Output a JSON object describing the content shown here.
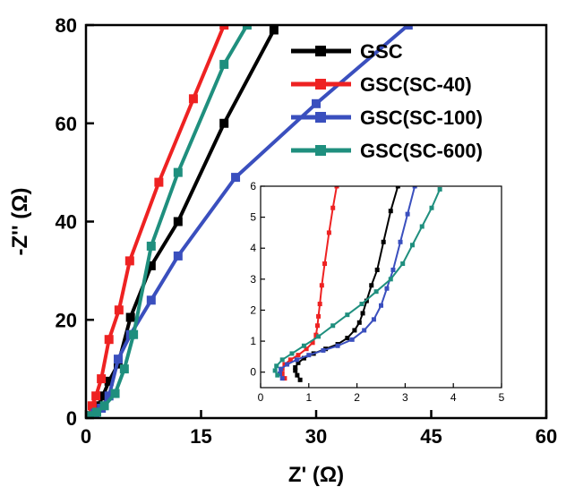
{
  "chart_data": [
    {
      "type": "line",
      "xlabel": "Z' (Ω)",
      "ylabel": "-Z'' (Ω)",
      "xlim": [
        0,
        60
      ],
      "ylim": [
        0,
        80
      ],
      "xticks": [
        0,
        15,
        30,
        45,
        60
      ],
      "yticks": [
        0,
        20,
        40,
        60,
        80
      ],
      "legend": "top-right",
      "series": [
        {
          "name": "GSC",
          "color": "#000000",
          "x": [
            0.6,
            1.0,
            1.6,
            2.2,
            3.0,
            4.2,
            5.8,
            8.5,
            12.0,
            18.0,
            24.5
          ],
          "y": [
            0.5,
            1.2,
            2.5,
            4.5,
            7.5,
            11,
            20.5,
            31,
            40,
            60,
            79
          ]
        },
        {
          "name": "GSC(SC-40)",
          "color": "#ee2222",
          "x": [
            0.4,
            0.8,
            1.3,
            2.0,
            3.0,
            4.3,
            5.7,
            9.5,
            14.0,
            18.0
          ],
          "y": [
            0.5,
            2.5,
            4.5,
            8,
            16,
            22,
            32,
            48,
            65,
            80
          ]
        },
        {
          "name": "GSC(SC-100)",
          "color": "#3a4fbe",
          "x": [
            0.6,
            1.2,
            2.0,
            3.0,
            4.2,
            5.8,
            8.5,
            12.0,
            19.5,
            30.0,
            42.0
          ],
          "y": [
            0.4,
            1.0,
            2.0,
            4.5,
            12,
            17,
            24,
            33,
            49,
            64,
            80
          ]
        },
        {
          "name": "GSC(SC-600)",
          "color": "#1f8f7e",
          "x": [
            0.6,
            1.4,
            2.4,
            3.8,
            5.0,
            6.2,
            8.5,
            12.0,
            18.0,
            21.0
          ],
          "y": [
            0.5,
            1.2,
            2.5,
            5,
            10,
            17,
            35,
            50,
            72,
            80
          ]
        }
      ]
    },
    {
      "type": "line",
      "xlim": [
        0,
        5
      ],
      "ylim": [
        -0.5,
        6
      ],
      "xticks": [
        0,
        1,
        2,
        3,
        4,
        5
      ],
      "yticks": [
        0,
        1,
        2,
        3,
        4,
        5,
        6
      ],
      "series": [
        {
          "name": "GSC",
          "color": "#000000",
          "x": [
            0.82,
            0.76,
            0.72,
            0.72,
            0.78,
            0.9,
            1.1,
            1.35,
            1.6,
            1.8,
            1.95,
            2.05,
            2.12,
            2.2,
            2.3,
            2.42,
            2.55,
            2.7,
            2.85
          ],
          "y": [
            -0.25,
            -0.1,
            0.05,
            0.15,
            0.3,
            0.45,
            0.6,
            0.75,
            0.9,
            1.1,
            1.35,
            1.6,
            1.9,
            2.3,
            2.8,
            3.3,
            4.2,
            5.2,
            6.0
          ]
        },
        {
          "name": "GSC(SC-40)",
          "color": "#ee2222",
          "x": [
            0.5,
            0.45,
            0.45,
            0.5,
            0.62,
            0.78,
            0.95,
            1.08,
            1.15,
            1.18,
            1.2,
            1.23,
            1.27,
            1.33,
            1.42,
            1.5,
            1.58
          ],
          "y": [
            -0.2,
            -0.05,
            0.1,
            0.25,
            0.4,
            0.55,
            0.75,
            0.95,
            1.2,
            1.5,
            1.8,
            2.2,
            2.8,
            3.5,
            4.5,
            5.3,
            6.0
          ]
        },
        {
          "name": "GSC(SC-100)",
          "color": "#3a4fbe",
          "x": [
            0.45,
            0.4,
            0.42,
            0.55,
            0.75,
            1.0,
            1.3,
            1.6,
            1.9,
            2.15,
            2.35,
            2.5,
            2.62,
            2.75,
            2.9,
            3.05,
            3.2
          ],
          "y": [
            -0.2,
            -0.05,
            0.1,
            0.25,
            0.4,
            0.55,
            0.7,
            0.85,
            1.05,
            1.35,
            1.7,
            2.15,
            2.7,
            3.3,
            4.2,
            5.1,
            6.0
          ]
        },
        {
          "name": "GSC(SC-600)",
          "color": "#1f8f7e",
          "x": [
            0.35,
            0.3,
            0.33,
            0.45,
            0.65,
            0.9,
            1.2,
            1.5,
            1.8,
            2.1,
            2.4,
            2.7,
            2.95,
            3.15,
            3.35,
            3.55,
            3.72
          ],
          "y": [
            -0.1,
            0.05,
            0.2,
            0.4,
            0.6,
            0.85,
            1.15,
            1.5,
            1.85,
            2.2,
            2.6,
            3.0,
            3.5,
            4.1,
            4.7,
            5.3,
            5.9
          ]
        }
      ]
    }
  ]
}
